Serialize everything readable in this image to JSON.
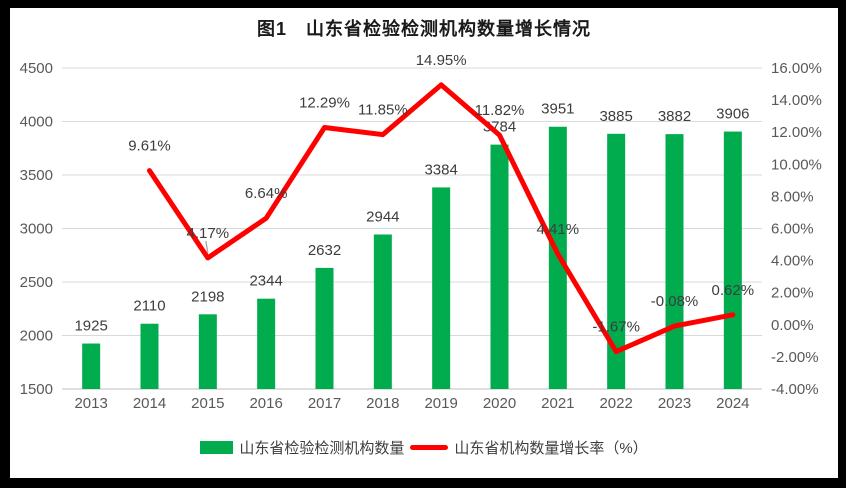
{
  "frame": {
    "background": "#000000",
    "chart_background": "#FFFFFF"
  },
  "chart_data": {
    "type": "combo",
    "title": "图1　山东省检验检测机构数量增长情况",
    "categories": [
      "2013",
      "2014",
      "2015",
      "2016",
      "2017",
      "2018",
      "2019",
      "2020",
      "2021",
      "2022",
      "2023",
      "2024"
    ],
    "series": [
      {
        "name": "山东省检验检测机构数量",
        "type": "bar",
        "axis": "left",
        "color": "#00AC4E",
        "values": [
          1925,
          2110,
          2198,
          2344,
          2632,
          2944,
          3384,
          3784,
          3951,
          3885,
          3882,
          3906
        ],
        "labels": [
          "1925",
          "2110",
          "2198",
          "2344",
          "2632",
          "2944",
          "3384",
          "3784",
          "3951",
          "3885",
          "3882",
          "3906"
        ]
      },
      {
        "name": "山东省机构数量增长率（%）",
        "type": "line",
        "axis": "right",
        "color": "#FF0000",
        "values": [
          null,
          9.61,
          4.17,
          6.64,
          12.29,
          11.85,
          14.95,
          11.82,
          4.41,
          -1.67,
          -0.08,
          0.62
        ],
        "labels": [
          null,
          "9.61%",
          "4.17%",
          "6.64%",
          "12.29%",
          "11.85%",
          "14.95%",
          "11.82%",
          "4.41%",
          "-1.67%",
          "-0.08%",
          "0.62%"
        ]
      }
    ],
    "left_axis": {
      "min": 1500,
      "max": 4500,
      "step": 500,
      "tick_labels": [
        "1500",
        "2000",
        "2500",
        "3000",
        "3500",
        "4000",
        "4500"
      ]
    },
    "right_axis": {
      "min": -4,
      "max": 16,
      "step": 2,
      "tick_labels": [
        "-4.00%",
        "-2.00%",
        "0.00%",
        "2.00%",
        "4.00%",
        "6.00%",
        "8.00%",
        "10.00%",
        "12.00%",
        "14.00%",
        "16.00%"
      ]
    },
    "grid": true,
    "legend_position": "bottom",
    "colors": {
      "gridline": "#D9D9D9",
      "axis_line": "#BFBFBF",
      "tick_text": "#595959",
      "data_label": "#3D3D3D",
      "title_text": "#1A1A1A",
      "leader_line": "#A6A6A6"
    }
  }
}
